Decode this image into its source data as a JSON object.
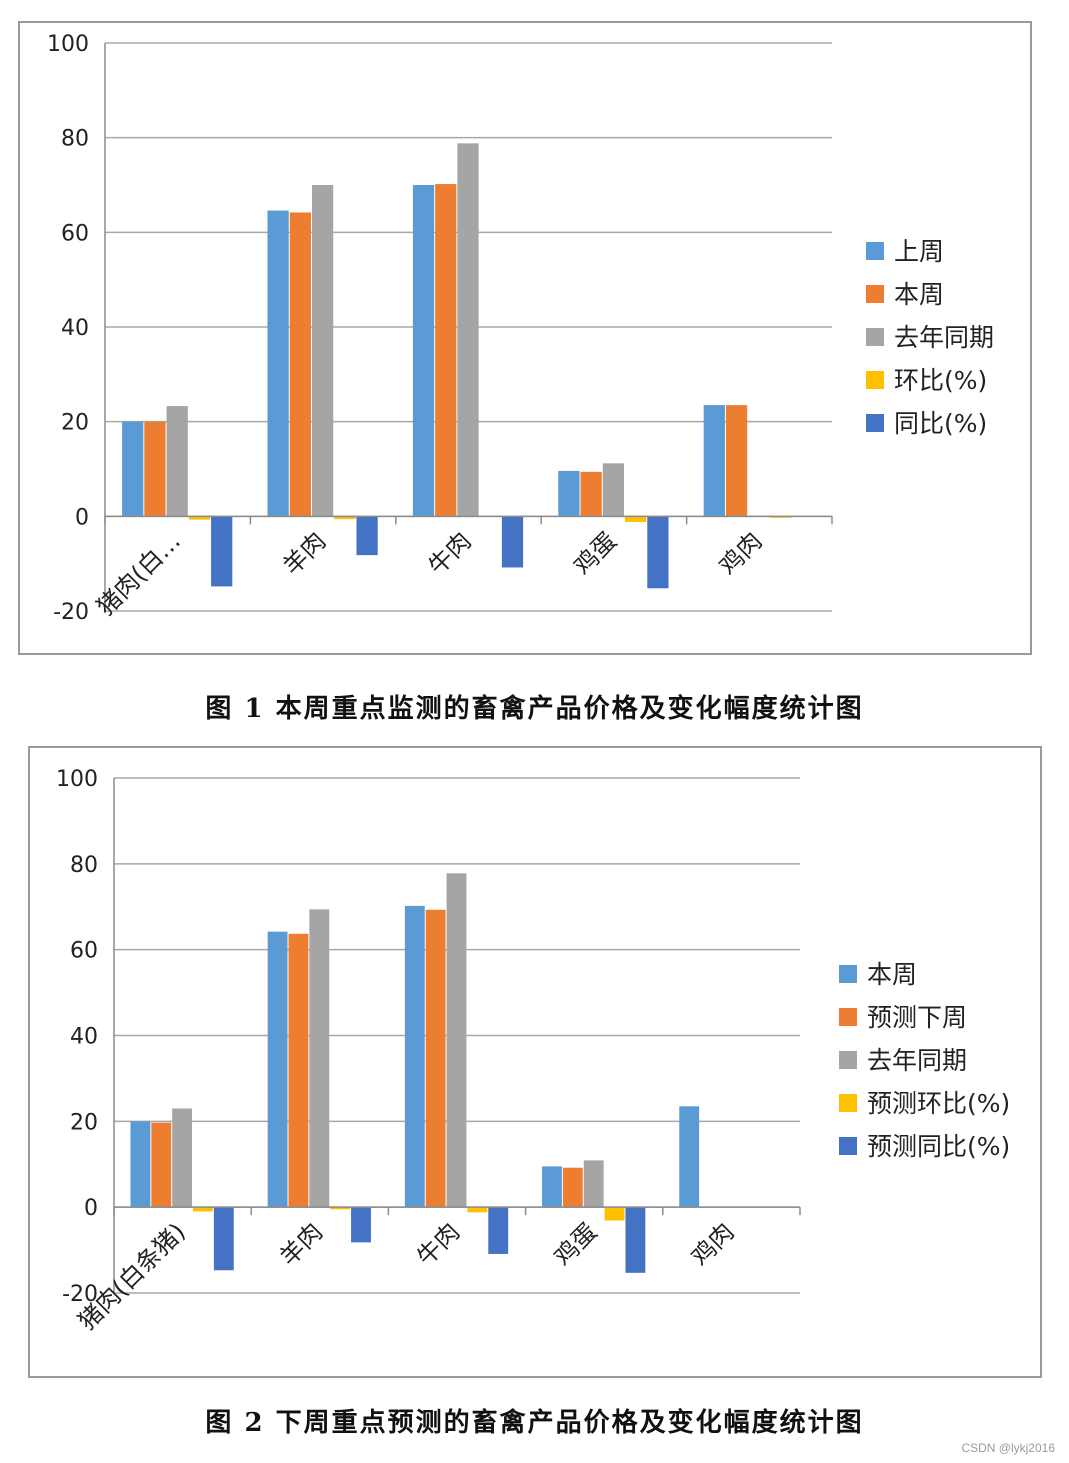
{
  "chart_data": [
    {
      "type": "bar",
      "categories": [
        "猪肉(白…",
        "羊肉",
        "牛肉",
        "鸡蛋",
        "鸡肉"
      ],
      "ylim": [
        -20,
        100
      ],
      "yticks": [
        100,
        80,
        60,
        40,
        20,
        0,
        -20
      ],
      "grid": true,
      "legend_position": "right",
      "series": [
        {
          "name": "上周",
          "color": "#5B9BD5",
          "values": [
            20.0,
            64.6,
            70.0,
            9.6,
            23.5
          ]
        },
        {
          "name": "本周",
          "color": "#ED7D31",
          "values": [
            20.0,
            64.2,
            70.2,
            9.4,
            23.5
          ]
        },
        {
          "name": "去年同期",
          "color": "#A5A5A5",
          "values": [
            23.3,
            70.0,
            78.8,
            11.2,
            null
          ]
        },
        {
          "name": "环比(%)",
          "color": "#FFC000",
          "values": [
            -0.7,
            -0.6,
            0.0,
            -1.2,
            -0.3
          ]
        },
        {
          "name": "同比(%)",
          "color": "#4472C4",
          "values": [
            -14.8,
            -8.2,
            -10.8,
            -15.2,
            null
          ]
        }
      ],
      "caption": "图 1 本周重点监测的畜禽产品价格及变化幅度统计图"
    },
    {
      "type": "bar",
      "categories": [
        "猪肉(白条猪)",
        "羊肉",
        "牛肉",
        "鸡蛋",
        "鸡肉"
      ],
      "ylim": [
        -20,
        100
      ],
      "yticks": [
        100,
        80,
        60,
        40,
        20,
        0,
        -20
      ],
      "grid": true,
      "legend_position": "right",
      "series": [
        {
          "name": "本周",
          "color": "#5B9BD5",
          "values": [
            20.0,
            64.2,
            70.2,
            9.5,
            23.5
          ]
        },
        {
          "name": "预测下周",
          "color": "#ED7D31",
          "values": [
            19.7,
            63.7,
            69.3,
            9.2,
            null
          ]
        },
        {
          "name": "去年同期",
          "color": "#A5A5A5",
          "values": [
            23.0,
            69.4,
            77.8,
            10.9,
            null
          ]
        },
        {
          "name": "预测环比(%)",
          "color": "#FFC000",
          "values": [
            -1.0,
            -0.5,
            -1.2,
            -3.1,
            null
          ]
        },
        {
          "name": "预测同比(%)",
          "color": "#4472C4",
          "values": [
            -14.7,
            -8.2,
            -10.9,
            -15.3,
            null
          ]
        }
      ],
      "caption": "图 2 下周重点预测的畜禽产品价格及变化幅度统计图"
    }
  ],
  "watermark": "CSDN @lykj2016"
}
